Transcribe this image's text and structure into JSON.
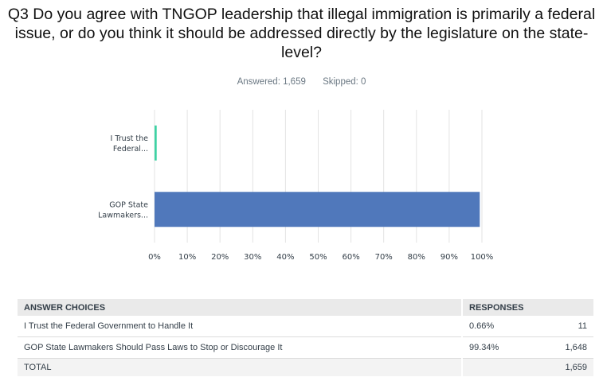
{
  "question": {
    "title": "Q3 Do you agree with TNGOP leadership that illegal immigration is primarily a federal issue, or do you think it should be addressed directly by the legislature on the state-level?",
    "answered": "Answered: 1,659",
    "skipped": "Skipped: 0"
  },
  "chart_data": {
    "type": "bar",
    "orientation": "horizontal",
    "categories": [
      "I Trust the Federal...",
      "GOP State Lawmakers..."
    ],
    "values": [
      0.66,
      99.34
    ],
    "colors": [
      "#3fd2a4",
      "#5078bb"
    ],
    "xlim": [
      0,
      100
    ],
    "xticks": [
      "0%",
      "10%",
      "20%",
      "30%",
      "40%",
      "50%",
      "60%",
      "70%",
      "80%",
      "90%",
      "100%"
    ],
    "grid": true
  },
  "table": {
    "headers": {
      "choices": "ANSWER CHOICES",
      "responses": "RESPONSES"
    },
    "rows": [
      {
        "choice": "I Trust the Federal Government to Handle It",
        "percent": "0.66%",
        "count": "11"
      },
      {
        "choice": "GOP State Lawmakers Should Pass Laws to Stop or Discourage It",
        "percent": "99.34%",
        "count": "1,648"
      }
    ],
    "total": {
      "label": "TOTAL",
      "count": "1,659"
    }
  }
}
